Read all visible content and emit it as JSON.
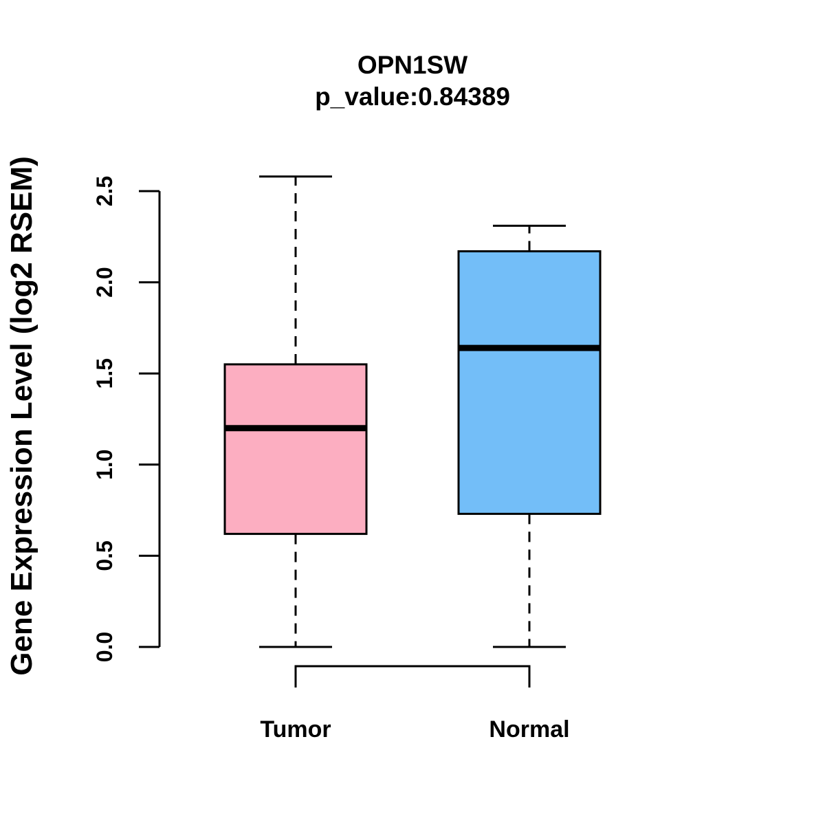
{
  "chart_data": {
    "type": "boxplot",
    "title": "OPN1SW",
    "subtitle": "p_value:0.84389",
    "p_value": 0.84389,
    "ylabel": "Gene Expression Level (log2 RSEM)",
    "xlabel": "",
    "ylim": [
      0,
      2.5
    ],
    "yticks": [
      0.0,
      0.5,
      1.0,
      1.5,
      2.0,
      2.5
    ],
    "ytick_labels": [
      "0.0",
      "0.5",
      "1.0",
      "1.5",
      "2.0",
      "2.5"
    ],
    "categories": [
      "Tumor",
      "Normal"
    ],
    "grid": false,
    "legend": "none",
    "whisker_line_style": "dashed",
    "groups": [
      {
        "label": "Tumor",
        "color": "#FCAEC1",
        "min": 0.0,
        "q1": 0.62,
        "median": 1.2,
        "q3": 1.55,
        "max": 2.58
      },
      {
        "label": "Normal",
        "color": "#73BEF8",
        "min": 0.0,
        "q1": 0.73,
        "median": 1.64,
        "q3": 2.17,
        "max": 2.31
      }
    ],
    "colors": {
      "stroke": "#000000",
      "background": "#FFFFFF",
      "tumor_fill": "#FCAEC1",
      "normal_fill": "#73BEF8"
    }
  }
}
